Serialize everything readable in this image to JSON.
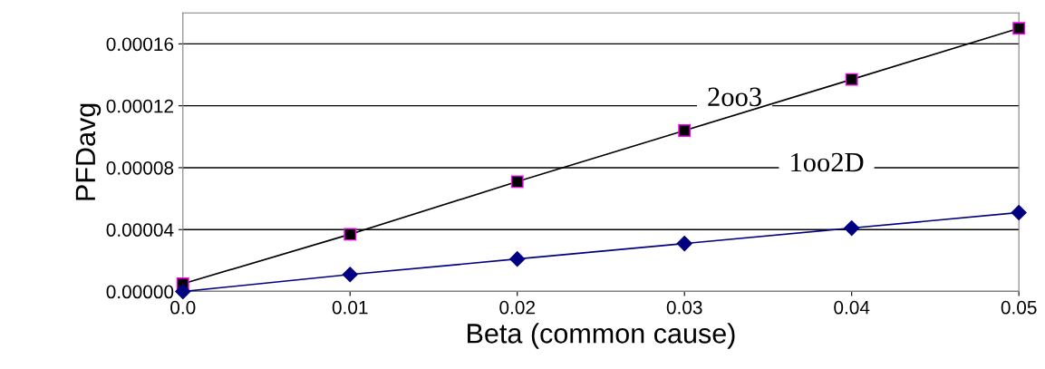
{
  "chart_data": {
    "type": "line",
    "xlabel": "Beta (common cause)",
    "ylabel": "PFDavg",
    "x": [
      0,
      0.01,
      0.02,
      0.03,
      0.04,
      0.05
    ],
    "series": [
      {
        "color": "#000000",
        "marker": "square",
        "values": [
          5e-06,
          3.7e-05,
          7.1e-05,
          0.000104,
          0.000137,
          0.00017
        ]
      },
      {
        "color": "#000080",
        "marker": "diamond",
        "values": [
          0,
          1.1e-05,
          2.1e-05,
          3.1e-05,
          4.1e-05,
          5.1e-05
        ]
      }
    ],
    "annotations": [
      "2oo3",
      "1oo2D"
    ],
    "xlim": [
      0,
      0.05
    ],
    "ylim": [
      0,
      0.00018
    ],
    "xticks": [
      {
        "value": 0,
        "label": "0.0"
      },
      0.01,
      0.02,
      0.03,
      0.04,
      0.05
    ],
    "yticks": [
      {
        "value": 0,
        "label": "0.00000"
      },
      {
        "value": 4e-05,
        "label": "0.00004"
      },
      {
        "value": 8e-05,
        "label": "0.00008"
      },
      {
        "value": 0.00012,
        "label": "0.00012"
      },
      {
        "value": 0.00016,
        "label": "0.00016"
      }
    ],
    "grid": "y",
    "line_style": "solid"
  }
}
